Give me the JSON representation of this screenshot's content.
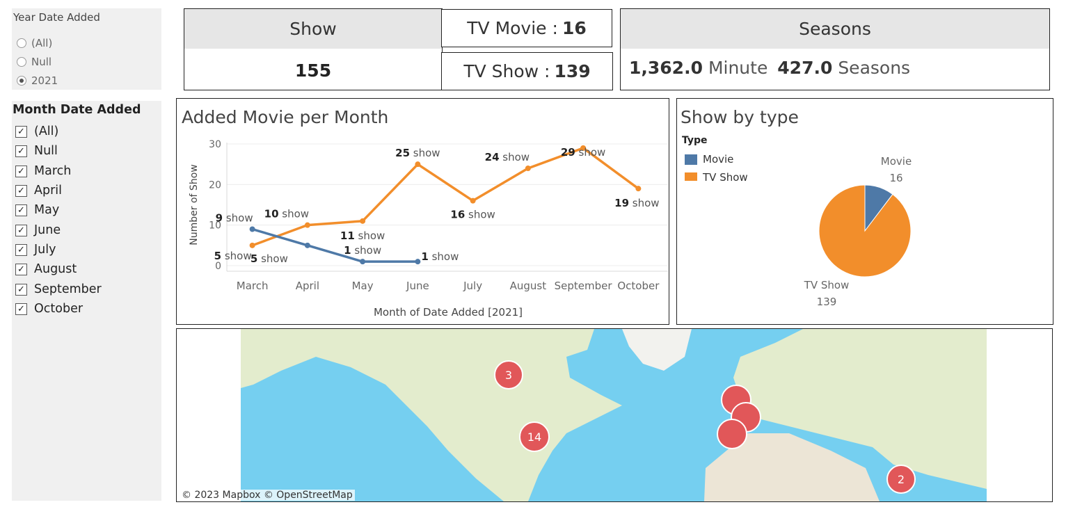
{
  "year_filter": {
    "title": "Year Date Added",
    "options": [
      {
        "label": "(All)",
        "selected": false
      },
      {
        "label": "Null",
        "selected": false
      },
      {
        "label": "2021",
        "selected": true
      }
    ]
  },
  "month_filter": {
    "title": "Month Date Added",
    "options": [
      {
        "label": "(All)",
        "checked": true
      },
      {
        "label": "Null",
        "checked": true
      },
      {
        "label": "March",
        "checked": true
      },
      {
        "label": "April",
        "checked": true
      },
      {
        "label": "May",
        "checked": true
      },
      {
        "label": "June",
        "checked": true
      },
      {
        "label": "July",
        "checked": true
      },
      {
        "label": "August",
        "checked": true
      },
      {
        "label": "September",
        "checked": true
      },
      {
        "label": "October",
        "checked": true
      }
    ]
  },
  "kpi": {
    "show_title": "Show",
    "show_value": "155",
    "tv_movie_label": "TV Movie :",
    "tv_movie_value": "16",
    "tv_show_label": "TV Show :",
    "tv_show_value": "139",
    "seasons_title": "Seasons",
    "minute_value": "1,362.0",
    "minute_unit": "Minute",
    "seasons_value": "427.0",
    "seasons_unit": "Seasons"
  },
  "line_panel": {
    "title": "Added Movie per Month"
  },
  "pie_panel": {
    "title": "Show by type",
    "legend_title": "Type"
  },
  "map": {
    "attribution": "© 2023 Mapbox  © OpenStreetMap"
  },
  "colors": {
    "movie": "#4e79a7",
    "tv_show": "#f28e2b",
    "map_water": "#75cff0",
    "map_land": "#e3eccd",
    "marker": "#e15759"
  },
  "chart_data": [
    {
      "type": "line",
      "title": "Added Movie per Month",
      "xlabel": "Month of Date Added [2021]",
      "ylabel": "Number of Show",
      "categories": [
        "March",
        "April",
        "May",
        "June",
        "July",
        "August",
        "September",
        "October"
      ],
      "ylim": [
        0,
        30
      ],
      "yticks": [
        0,
        10,
        20,
        30
      ],
      "grid": true,
      "label_suffix": "show",
      "series": [
        {
          "values": [
            5,
            10,
            11,
            25,
            16,
            24,
            29,
            19
          ],
          "color": "#f28e2b"
        },
        {
          "values": [
            9,
            5,
            1,
            1,
            null,
            null,
            null,
            null
          ],
          "color": "#4e79a7"
        }
      ]
    },
    {
      "type": "pie",
      "title": "Show by type",
      "legend_placement": "top-left",
      "slices": [
        {
          "label": "Movie",
          "value": 16,
          "color": "#4e79a7"
        },
        {
          "label": "TV Show",
          "value": 139,
          "color": "#f28e2b"
        }
      ]
    }
  ],
  "map_markers": [
    {
      "label": "3"
    },
    {
      "label": "14"
    },
    {
      "label": ""
    },
    {
      "label": ""
    },
    {
      "label": ""
    },
    {
      "label": "2"
    }
  ]
}
